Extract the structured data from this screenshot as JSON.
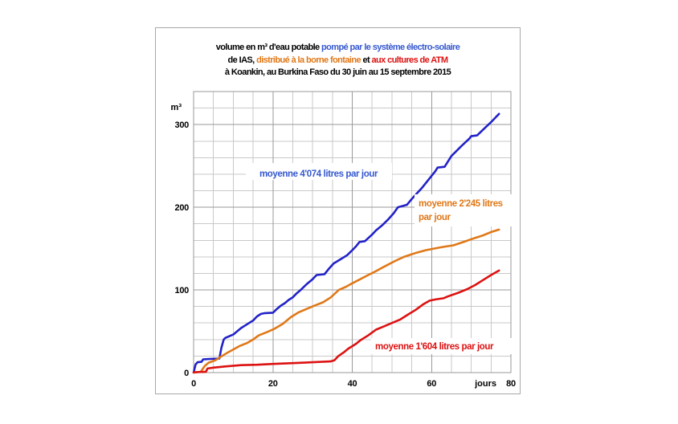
{
  "title": {
    "line1_black": "volume en m³ d'eau potable ",
    "line1_blue": "pompé par le système électro-solaire",
    "line2_black1": "de IAS, ",
    "line2_orange": "distribué à la borne fontaine",
    "line2_black2": " et ",
    "line2_red": "aux cultures de ATM",
    "line3": "à Koankin,  au Burkina Faso du 30 juin au 15 septembre 2015"
  },
  "colors": {
    "blue": "#3558cf",
    "curve_blue": "#2222c8",
    "orange": "#e07818",
    "red": "#dd1111",
    "black": "#000000",
    "grid_minor": "#c9c9c9",
    "grid_major": "#999999",
    "plot_border": "#999999"
  },
  "chart_data": {
    "type": "line",
    "xlabel": "jours",
    "y_unit": "m³",
    "xlim": [
      0,
      80
    ],
    "ylim": [
      0,
      340
    ],
    "x_ticks": [
      0,
      20,
      40,
      60,
      80
    ],
    "y_ticks": [
      0,
      100,
      200,
      300
    ],
    "grid": {
      "x_minor": 5,
      "x_major": 20,
      "y_minor": 20,
      "y_major": 100,
      "on": true
    },
    "duration_days": 77,
    "series": [
      {
        "name": "pompé par le système électro-solaire",
        "color_key": "curve_blue",
        "moyenne_litres_par_jour": "4'074",
        "points": [
          [
            0,
            0
          ],
          [
            0.5,
            10
          ],
          [
            1,
            12.5
          ],
          [
            2,
            13
          ],
          [
            2.4,
            16
          ],
          [
            4,
            16.5
          ],
          [
            6.5,
            17
          ],
          [
            7,
            30
          ],
          [
            7.6,
            40
          ],
          [
            8,
            42
          ],
          [
            9,
            44
          ],
          [
            10,
            46
          ],
          [
            11,
            50
          ],
          [
            12,
            54
          ],
          [
            13,
            57
          ],
          [
            14,
            60
          ],
          [
            15,
            63
          ],
          [
            16,
            68
          ],
          [
            17,
            71
          ],
          [
            18,
            72
          ],
          [
            20,
            72.5
          ],
          [
            21,
            77
          ],
          [
            22,
            81
          ],
          [
            23,
            84
          ],
          [
            24,
            88
          ],
          [
            25,
            91
          ],
          [
            26,
            96
          ],
          [
            27,
            100
          ],
          [
            28.5,
            107
          ],
          [
            30,
            113
          ],
          [
            31,
            118
          ],
          [
            33,
            119
          ],
          [
            34,
            125
          ],
          [
            35.3,
            132
          ],
          [
            37,
            137
          ],
          [
            38.7,
            142
          ],
          [
            40,
            148
          ],
          [
            41,
            153
          ],
          [
            41.8,
            158
          ],
          [
            43.2,
            159
          ],
          [
            45,
            167
          ],
          [
            46,
            172
          ],
          [
            47.5,
            178
          ],
          [
            49,
            185
          ],
          [
            50.5,
            193
          ],
          [
            51.5,
            200
          ],
          [
            53.8,
            203
          ],
          [
            55,
            210
          ],
          [
            57.5,
            223
          ],
          [
            59,
            232
          ],
          [
            61,
            244
          ],
          [
            61.5,
            248
          ],
          [
            63.3,
            249
          ],
          [
            65,
            262
          ],
          [
            67.5,
            274
          ],
          [
            69.5,
            283
          ],
          [
            70,
            286
          ],
          [
            71.5,
            287
          ],
          [
            73,
            294
          ],
          [
            75,
            303
          ],
          [
            76,
            308
          ],
          [
            77,
            313
          ]
        ]
      },
      {
        "name": "distribué à la borne fontaine",
        "color_key": "orange",
        "moyenne_litres_par_jour": "2'245",
        "points": [
          [
            0,
            0
          ],
          [
            1.8,
            1
          ],
          [
            2.8,
            8
          ],
          [
            3.8,
            12
          ],
          [
            5.5,
            15
          ],
          [
            6.8,
            19
          ],
          [
            8.5,
            24
          ],
          [
            10,
            28
          ],
          [
            11.5,
            32
          ],
          [
            13.6,
            36
          ],
          [
            15,
            40
          ],
          [
            16.4,
            45
          ],
          [
            18.5,
            49
          ],
          [
            20.4,
            53
          ],
          [
            22.5,
            59
          ],
          [
            24.5,
            67
          ],
          [
            26.5,
            73
          ],
          [
            28.5,
            77
          ],
          [
            30.5,
            81
          ],
          [
            32.6,
            85
          ],
          [
            34.6,
            91
          ],
          [
            36.6,
            100
          ],
          [
            38.5,
            104
          ],
          [
            40,
            108
          ],
          [
            42,
            113
          ],
          [
            44,
            118
          ],
          [
            45.7,
            122
          ],
          [
            48,
            128
          ],
          [
            50.8,
            135
          ],
          [
            53,
            140
          ],
          [
            56.2,
            145
          ],
          [
            58.5,
            148
          ],
          [
            61.6,
            151
          ],
          [
            63.5,
            152.5
          ],
          [
            65.5,
            154
          ],
          [
            68,
            158
          ],
          [
            71,
            163
          ],
          [
            73,
            166
          ],
          [
            75,
            170
          ],
          [
            77,
            173
          ]
        ]
      },
      {
        "name": "aux cultures de ATM",
        "color_key": "red",
        "moyenne_litres_par_jour": "1'604",
        "points": [
          [
            0,
            0.5
          ],
          [
            3.1,
            1
          ],
          [
            3.5,
            5
          ],
          [
            5,
            6
          ],
          [
            8,
            7.5
          ],
          [
            12,
            9
          ],
          [
            16,
            9.5
          ],
          [
            20,
            10.5
          ],
          [
            25,
            11.5
          ],
          [
            30,
            12.5
          ],
          [
            34.5,
            13.5
          ],
          [
            35.5,
            15
          ],
          [
            36.5,
            20
          ],
          [
            38,
            25
          ],
          [
            39,
            29
          ],
          [
            40,
            32
          ],
          [
            41,
            35
          ],
          [
            42,
            39
          ],
          [
            43,
            42
          ],
          [
            44,
            45
          ],
          [
            46,
            52
          ],
          [
            48,
            56
          ],
          [
            50,
            60
          ],
          [
            52,
            64
          ],
          [
            54,
            70
          ],
          [
            56,
            76
          ],
          [
            58,
            83
          ],
          [
            59.5,
            87
          ],
          [
            61,
            88.5
          ],
          [
            63,
            90
          ],
          [
            64,
            92
          ],
          [
            67,
            97
          ],
          [
            69,
            101
          ],
          [
            71,
            106
          ],
          [
            73,
            112
          ],
          [
            75,
            118
          ],
          [
            77,
            123.5
          ]
        ]
      }
    ],
    "annotations": [
      {
        "lines": [
          "moyenne 4'074 litres par jour"
        ],
        "color_key": "blue"
      },
      {
        "lines": [
          "moyenne 2'245 litres",
          "par jour"
        ],
        "color_key": "orange"
      },
      {
        "lines": [
          "moyenne 1'604 litres par jour"
        ],
        "color_key": "red"
      }
    ]
  }
}
